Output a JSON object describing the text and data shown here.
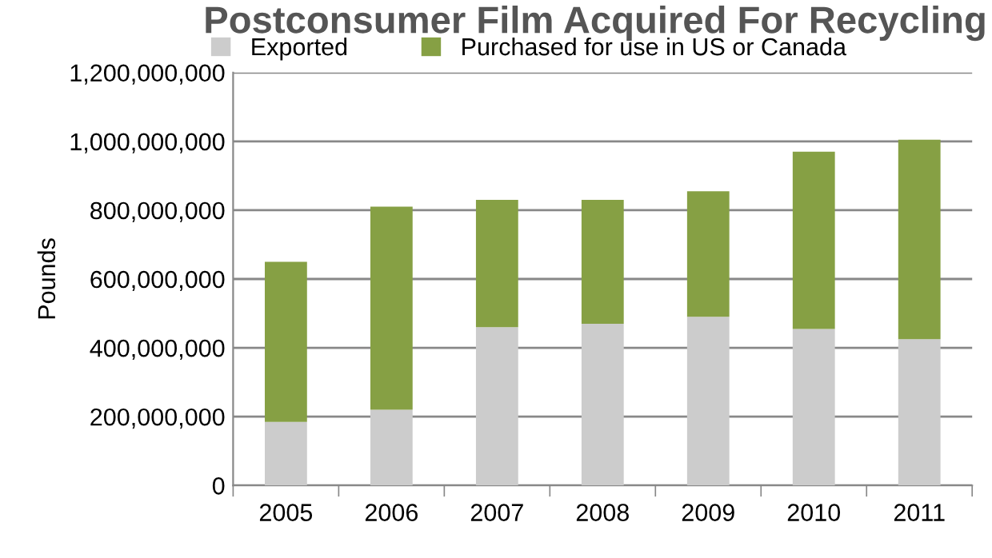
{
  "chart_data": {
    "type": "bar",
    "title": "Postconsumer Film Acquired For Recycling",
    "ylabel": "Pounds",
    "categories": [
      "2005",
      "2006",
      "2007",
      "2008",
      "2009",
      "2010",
      "2011"
    ],
    "series": [
      {
        "name": "Exported",
        "color": "#cccccc",
        "values": [
          185000000,
          220000000,
          460000000,
          470000000,
          490000000,
          455000000,
          425000000
        ]
      },
      {
        "name": "Purchased for use in US or Canada",
        "color": "#86a044",
        "values": [
          465000000,
          590000000,
          370000000,
          360000000,
          365000000,
          515000000,
          580000000
        ]
      }
    ],
    "stacked": true,
    "ylim": [
      0,
      1200000000
    ],
    "yticks": [
      {
        "value": 0,
        "label": "0"
      },
      {
        "value": 200000000,
        "label": "200,000,000"
      },
      {
        "value": 400000000,
        "label": "400,000,000"
      },
      {
        "value": 600000000,
        "label": "600,000,000"
      },
      {
        "value": 800000000,
        "label": "800,000,000"
      },
      {
        "value": 1000000000,
        "label": "1,000,000,000"
      },
      {
        "value": 1200000000,
        "label": "1,200,000,000"
      }
    ],
    "grid": "y",
    "legend": "top"
  }
}
